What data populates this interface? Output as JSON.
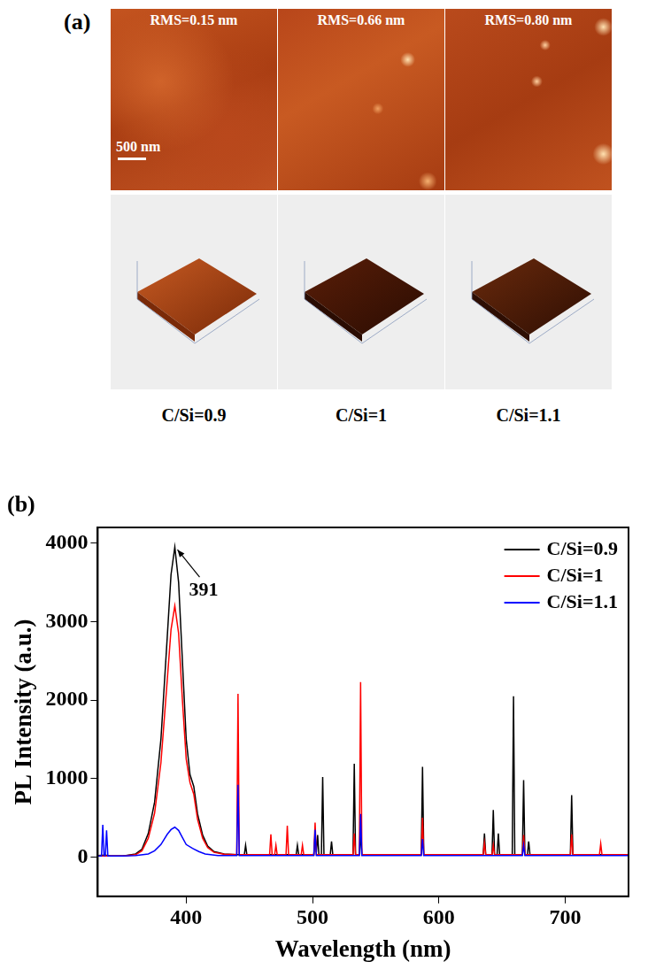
{
  "panel_a": {
    "label": "(a)",
    "scale_bar": "500 nm",
    "images": [
      {
        "rms": "RMS=0.15 nm",
        "sample": "C/Si=0.9"
      },
      {
        "rms": "RMS=0.66 nm",
        "sample": "C/Si=1"
      },
      {
        "rms": "RMS=0.80 nm",
        "sample": "C/Si=1.1"
      }
    ]
  },
  "chart_data": {
    "type": "line",
    "panel_label": "(b)",
    "x_label": "Wavelength (nm)",
    "y_label": "PL Intensity (a.u.)",
    "xlim": [
      330,
      750
    ],
    "xticks": [
      400,
      500,
      600,
      700
    ],
    "ylim": [
      -500,
      4200
    ],
    "yticks": [
      0,
      1000,
      2000,
      3000,
      4000
    ],
    "grid": false,
    "legend": "upper right",
    "annotations": [
      {
        "text": "391",
        "x": 391,
        "y": 3950
      }
    ],
    "series": [
      {
        "name": "C/Si=0.9",
        "color": "#000000",
        "x": [
          330,
          336,
          340,
          350,
          360,
          365,
          370,
          375,
          380,
          385,
          388,
          391,
          394,
          397,
          400,
          403,
          406,
          409,
          413,
          417,
          422,
          430,
          440,
          446,
          447,
          448,
          487,
          488,
          489,
          501,
          502,
          503,
          504,
          505,
          507,
          508,
          509,
          514,
          515,
          516,
          532,
          533,
          534,
          537,
          538,
          539,
          586,
          587,
          588,
          635,
          636,
          637,
          642,
          643,
          644,
          646,
          647,
          648,
          658,
          659,
          660,
          666,
          667,
          668,
          670,
          671,
          672,
          704,
          705,
          706,
          750
        ],
        "values": [
          20,
          25,
          15,
          15,
          40,
          100,
          300,
          700,
          1500,
          2800,
          3600,
          3950,
          3500,
          2500,
          1500,
          1050,
          900,
          550,
          280,
          140,
          70,
          40,
          30,
          30,
          150,
          30,
          30,
          150,
          30,
          30,
          280,
          60,
          280,
          30,
          30,
          1020,
          30,
          30,
          200,
          30,
          30,
          1190,
          30,
          30,
          300,
          30,
          30,
          1150,
          30,
          30,
          300,
          30,
          30,
          600,
          30,
          30,
          300,
          30,
          30,
          2050,
          30,
          30,
          980,
          30,
          30,
          200,
          30,
          30,
          790,
          30,
          30
        ]
      },
      {
        "name": "C/Si=1",
        "color": "#ff0000",
        "x": [
          330,
          340,
          350,
          360,
          365,
          370,
          375,
          380,
          385,
          388,
          391,
          394,
          397,
          400,
          403,
          406,
          409,
          413,
          417,
          422,
          430,
          440,
          441,
          442,
          466,
          467,
          468,
          470,
          471,
          472,
          479,
          480,
          481,
          491,
          492,
          493,
          501,
          502,
          503,
          532,
          533,
          534,
          537,
          538,
          539,
          586,
          587,
          588,
          635,
          636,
          637,
          642,
          643,
          644,
          666,
          667,
          668,
          704,
          705,
          706,
          727,
          728,
          729,
          750
        ],
        "values": [
          15,
          15,
          15,
          30,
          80,
          240,
          560,
          1200,
          2250,
          2900,
          3200,
          2850,
          2000,
          1250,
          950,
          800,
          480,
          240,
          120,
          60,
          35,
          30,
          2080,
          30,
          30,
          290,
          30,
          30,
          150,
          30,
          30,
          400,
          30,
          30,
          150,
          30,
          30,
          440,
          30,
          30,
          300,
          30,
          30,
          2230,
          30,
          30,
          500,
          30,
          30,
          180,
          30,
          30,
          150,
          30,
          30,
          280,
          30,
          30,
          290,
          30,
          30,
          170,
          30,
          30
        ]
      },
      {
        "name": "C/Si=1.1",
        "color": "#0000ff",
        "x": [
          330,
          333,
          334,
          335,
          336,
          337,
          338,
          350,
          360,
          370,
          375,
          380,
          385,
          388,
          391,
          394,
          397,
          400,
          405,
          410,
          415,
          425,
          440,
          441,
          442,
          501,
          502,
          503,
          537,
          538,
          539,
          586,
          587,
          588,
          666,
          667,
          668,
          750
        ],
        "values": [
          15,
          15,
          410,
          20,
          20,
          340,
          15,
          15,
          20,
          40,
          80,
          160,
          290,
          350,
          380,
          340,
          250,
          160,
          110,
          70,
          40,
          20,
          20,
          920,
          20,
          20,
          350,
          20,
          20,
          550,
          20,
          20,
          230,
          20,
          20,
          150,
          20,
          20
        ]
      }
    ]
  }
}
